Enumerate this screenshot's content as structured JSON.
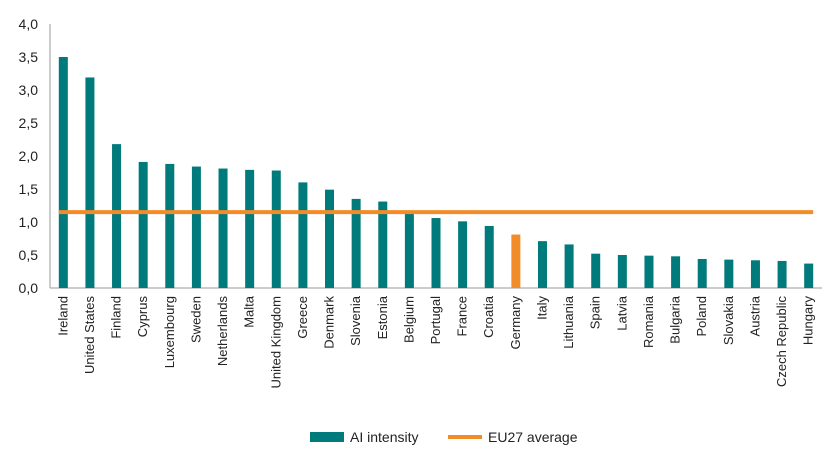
{
  "chart_data": {
    "type": "bar",
    "title": "",
    "xlabel": "",
    "ylabel": "",
    "ylim": [
      0,
      4.0
    ],
    "yticks": [
      "0,0",
      "0,5",
      "1,0",
      "1,5",
      "2,0",
      "2,5",
      "3,0",
      "3,5",
      "4,0"
    ],
    "categories": [
      "Ireland",
      "United States",
      "Finland",
      "Cyprus",
      "Luxembourg",
      "Sweden",
      "Netherlands",
      "Malta",
      "United Kingdom",
      "Greece",
      "Denmark",
      "Slovenia",
      "Estonia",
      "Belgium",
      "Portugal",
      "France",
      "Croatia",
      "Germany",
      "Italy",
      "Lithuania",
      "Spain",
      "Latvia",
      "Romania",
      "Bulgaria",
      "Poland",
      "Slovakia",
      "Austria",
      "Czech Republic",
      "Hungary"
    ],
    "series": [
      {
        "name": "AI intensity",
        "values": [
          3.5,
          3.19,
          2.18,
          1.91,
          1.88,
          1.84,
          1.81,
          1.79,
          1.78,
          1.6,
          1.49,
          1.35,
          1.31,
          1.15,
          1.06,
          1.01,
          0.94,
          0.81,
          0.71,
          0.66,
          0.52,
          0.5,
          0.49,
          0.48,
          0.44,
          0.43,
          0.42,
          0.41,
          0.37
        ],
        "color": "#007A7A",
        "highlight": {
          "category": "Germany",
          "color": "#F28C28"
        }
      },
      {
        "name": "EU27 average",
        "type": "line",
        "value": 1.15,
        "color": "#F28C28"
      }
    ],
    "legend": "bottom-center",
    "grid": false
  }
}
